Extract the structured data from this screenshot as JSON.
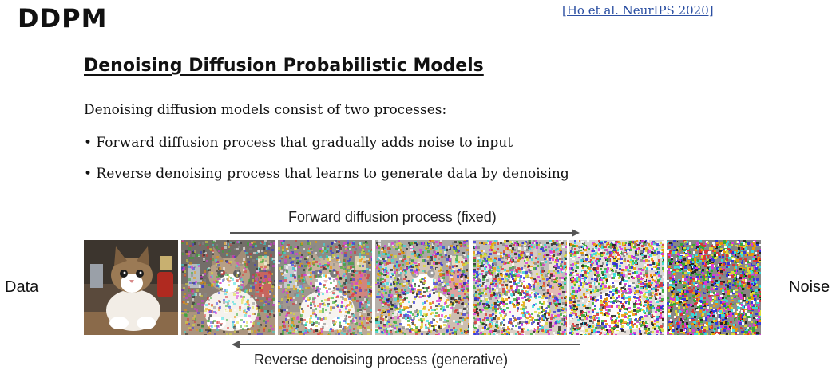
{
  "header": {
    "title": "DDPM",
    "citation": "[Ho et al. NeurIPS 2020]"
  },
  "content": {
    "subtitle": "Denoising Diffusion Probabilistic Models",
    "intro": "Denoising diffusion models consist of two processes:",
    "bullets": [
      "• Forward diffusion process that gradually adds noise to input",
      "• Reverse denoising process that learns to generate data by denoising"
    ]
  },
  "figure": {
    "forward_label": "Forward diffusion process (fixed)",
    "reverse_label": "Reverse denoising process (generative)",
    "left_label": "Data",
    "right_label": "Noise",
    "frames": [
      {
        "noise": 0.0
      },
      {
        "noise": 0.3
      },
      {
        "noise": 0.45
      },
      {
        "noise": 0.6
      },
      {
        "noise": 0.72
      },
      {
        "noise": 0.85
      },
      {
        "noise": 1.0
      }
    ],
    "colors": {
      "arrow": "#555555",
      "citation": "#2b4fa2"
    }
  }
}
